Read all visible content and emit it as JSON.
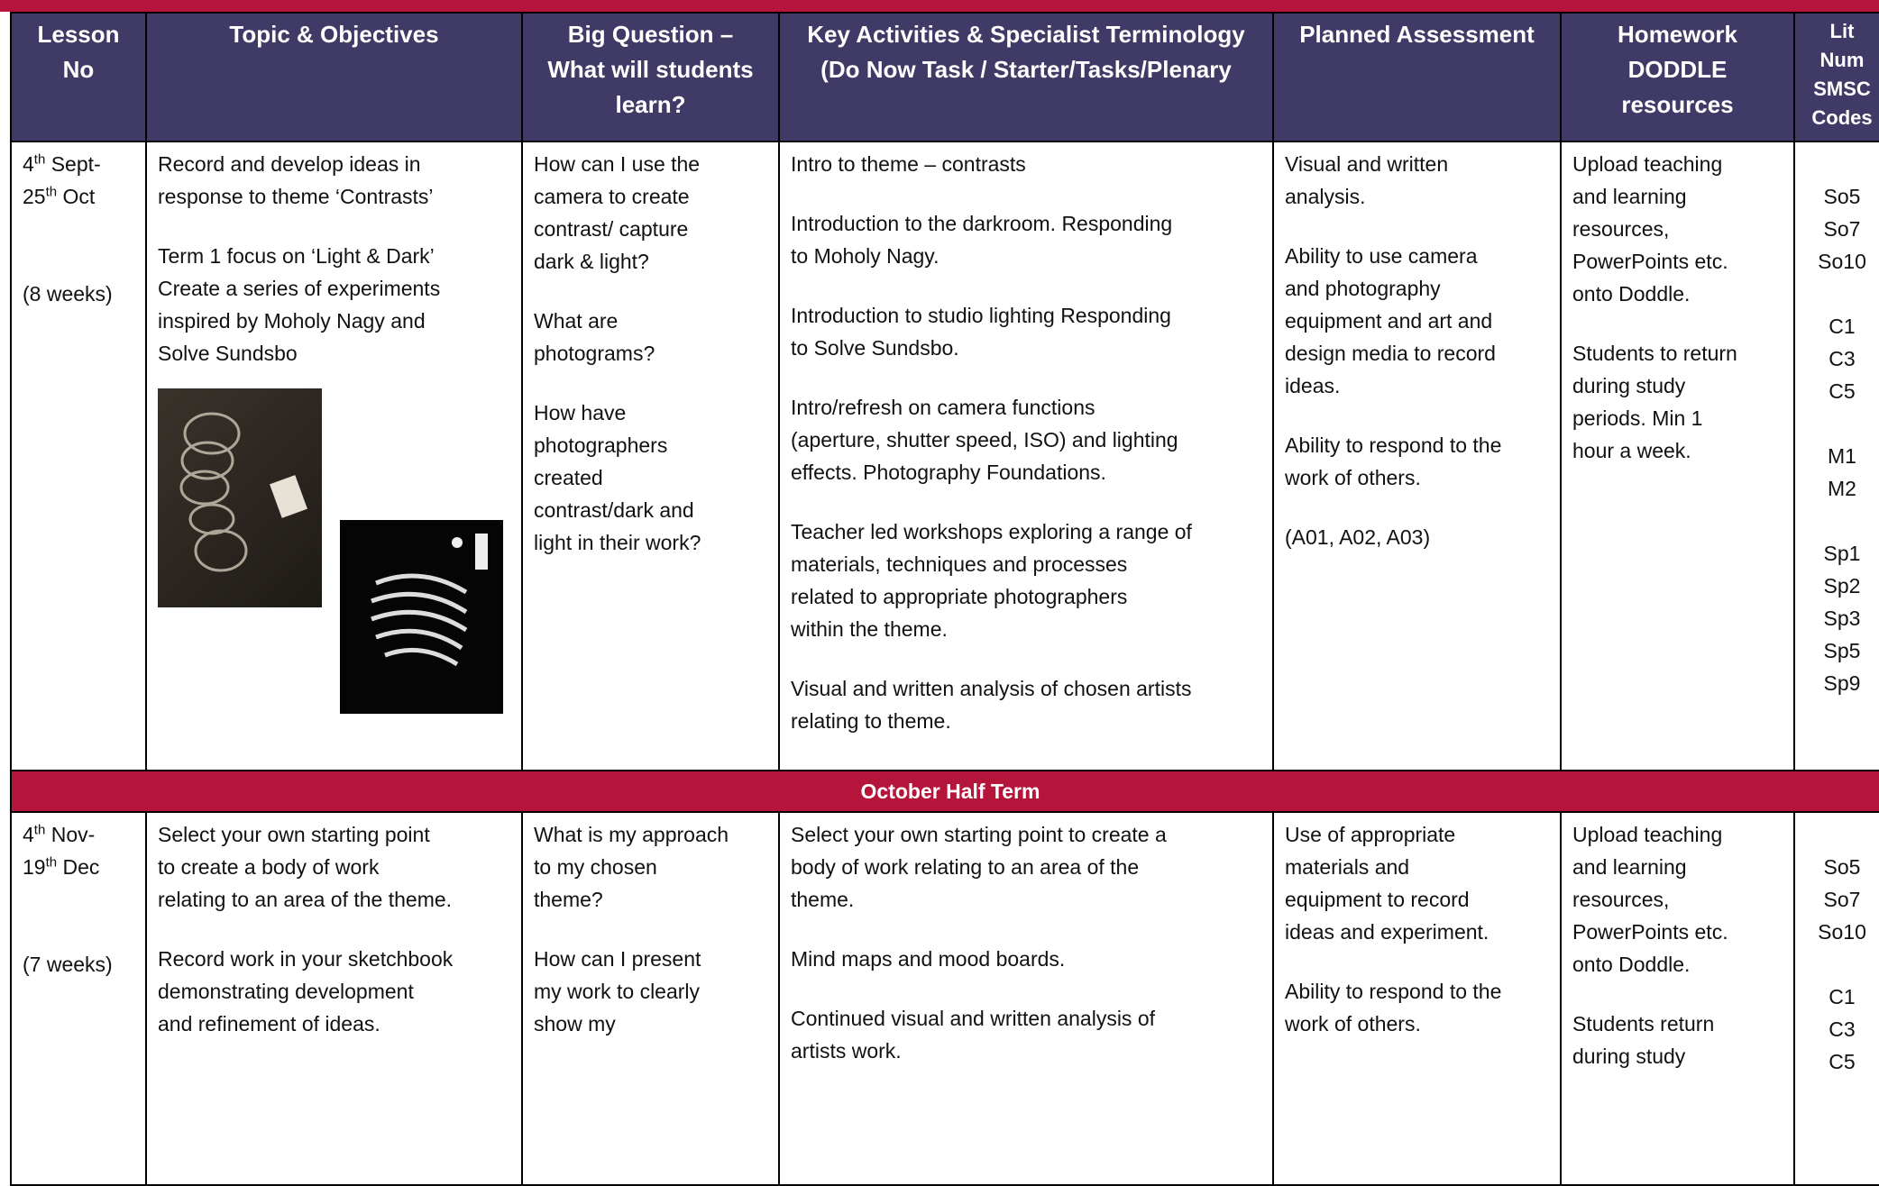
{
  "header": [
    [
      "Lesson",
      "No"
    ],
    [
      "Topic & Objectives"
    ],
    [
      "Big Question –",
      "What will students",
      "learn?"
    ],
    [
      "Key Activities & Specialist Terminology",
      "(Do Now Task / Starter/Tasks/Plenary"
    ],
    [
      "Planned Assessment"
    ],
    [
      "Homework",
      "DODDLE",
      "resources"
    ],
    [
      "Lit",
      "Num",
      "SMSC",
      "Codes"
    ]
  ],
  "rows": [
    {
      "lesson": {
        "dates": [
          {
            "day": "4",
            "suffix": "th",
            "rest": " Sept-"
          },
          {
            "day": "25",
            "suffix": "th",
            "rest": " Oct"
          }
        ],
        "duration": "(8 weeks)"
      },
      "topic": [
        [
          "Record and develop ideas in",
          "response to theme ‘Contrasts’"
        ],
        [
          "Term 1 focus on ‘Light & Dark’",
          "Create a series of experiments",
          "inspired by Moholy Nagy and",
          "Solve Sundsbo"
        ]
      ],
      "question": [
        [
          "How can I use the",
          "camera to create",
          "contrast/ capture",
          "dark & light?"
        ],
        [
          "What are",
          "photograms?"
        ],
        [
          "How have",
          "photographers",
          "created",
          "contrast/dark and",
          "light in their work?"
        ]
      ],
      "activities": [
        [
          "Intro to theme – contrasts"
        ],
        [
          "Introduction to the darkroom. Responding",
          "to Moholy Nagy."
        ],
        [
          "Introduction to studio lighting Responding",
          "to Solve Sundsbo."
        ],
        [
          "Intro/refresh on camera functions",
          "(aperture, shutter speed, ISO) and lighting",
          "effects. Photography Foundations."
        ],
        [
          "Teacher led workshops exploring a range of",
          "materials, techniques and processes",
          "related to appropriate photographers",
          "within the theme."
        ],
        [
          "Visual and written analysis of chosen artists",
          "relating to theme."
        ]
      ],
      "assessment": [
        [
          "Visual and written",
          "analysis."
        ],
        [
          "Ability to use camera",
          "and photography",
          "equipment and art and",
          "design media to record",
          "ideas."
        ],
        [
          "Ability to respond to the",
          "work of others."
        ],
        [
          "(A01, A02, A03)"
        ]
      ],
      "homework": [
        [
          "Upload teaching",
          "and learning",
          "resources,",
          "PowerPoints etc.",
          "onto Doddle."
        ],
        [
          "Students to return",
          "during study",
          "periods. Min 1",
          "hour a week."
        ]
      ],
      "codes": [
        [
          "So5",
          "So7",
          "So10"
        ],
        [
          "C1",
          "C3",
          "C5"
        ],
        [
          "M1",
          "M2"
        ],
        [
          "Sp1",
          "Sp2",
          "Sp3",
          "Sp5",
          "Sp9"
        ]
      ]
    },
    {
      "lesson": {
        "dates": [
          {
            "day": "4",
            "suffix": "th",
            "rest": " Nov-"
          },
          {
            "day": "19",
            "suffix": "th",
            "rest": " Dec"
          }
        ],
        "duration": "(7 weeks)"
      },
      "topic": [
        [
          "Select your own starting point",
          "to create a body of work",
          "relating to an area of the theme."
        ],
        [
          "Record work in your sketchbook",
          "demonstrating development",
          "and refinement of ideas."
        ]
      ],
      "question": [
        [
          "What is my approach",
          "to my chosen",
          "theme?"
        ],
        [
          "How can I present",
          "my work to clearly",
          "show my"
        ]
      ],
      "activities": [
        [
          "Select your own starting point to create a",
          "body of work relating to an area of the",
          "theme."
        ],
        [
          "Mind maps and mood boards."
        ],
        [
          "Continued visual and written analysis of",
          "artists work."
        ]
      ],
      "assessment": [
        [
          "Use of appropriate",
          "materials and",
          "equipment to record",
          "ideas and experiment."
        ],
        [
          "Ability to respond to the",
          "work of others."
        ]
      ],
      "homework": [
        [
          "Upload teaching",
          "and learning",
          "resources,",
          "PowerPoints etc.",
          "onto Doddle."
        ],
        [
          "Students return",
          "during study"
        ]
      ],
      "codes": [
        [
          "So5",
          "So7",
          "So10"
        ],
        [
          "C1",
          "C3",
          "C5"
        ]
      ]
    }
  ],
  "banner": "October Half Term"
}
